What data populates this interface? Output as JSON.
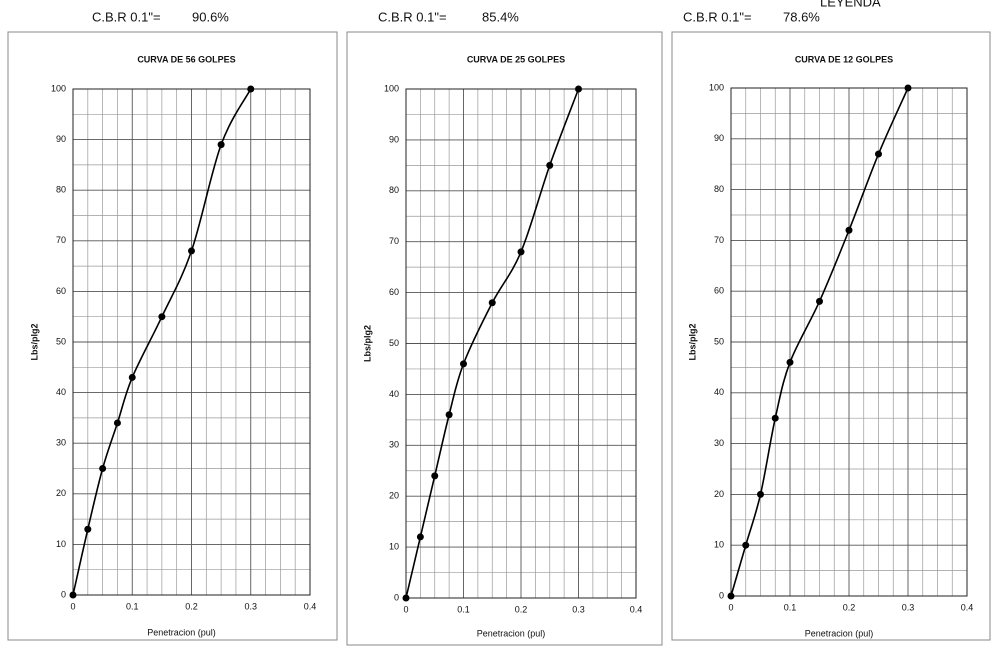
{
  "legend_text": "LEYENDA",
  "headers": [
    {
      "label": "C.B.R  0.1\"=",
      "value": "90.6%"
    },
    {
      "label": "C.B.R  0.1\"=",
      "value": "85.4%"
    },
    {
      "label": "C.B.R  0.1\"=",
      "value": "78.6%"
    }
  ],
  "chart_data": [
    {
      "type": "line",
      "title": "CURVA DE 56 GOLPES",
      "xlabel": "Penetracion (pul)",
      "ylabel": "Lbs/plg2",
      "x": [
        0,
        0.025,
        0.05,
        0.075,
        0.1,
        0.15,
        0.2,
        0.25,
        0.3
      ],
      "values": [
        0,
        13,
        25,
        34,
        43,
        55,
        68,
        89,
        100
      ],
      "color": "#000000",
      "markers": true,
      "smooth": true,
      "xlim": [
        0,
        0.4
      ],
      "xticks": [
        0,
        0.1,
        0.2,
        0.3,
        0.4
      ],
      "ylim": [
        0,
        100
      ],
      "yticks": [
        0,
        10,
        20,
        30,
        40,
        50,
        60,
        70,
        80,
        90,
        100
      ],
      "grid": true
    },
    {
      "type": "line",
      "title": "CURVA DE 25 GOLPES",
      "xlabel": "Penetracion (pul)",
      "ylabel": "Lbs/plg2",
      "x": [
        0,
        0.025,
        0.05,
        0.075,
        0.1,
        0.15,
        0.2,
        0.25,
        0.3
      ],
      "values": [
        0,
        12,
        24,
        36,
        46,
        58,
        68,
        85,
        100
      ],
      "color": "#000000",
      "markers": true,
      "smooth": true,
      "xlim": [
        0,
        0.4
      ],
      "xticks": [
        0,
        0.1,
        0.2,
        0.3,
        0.4
      ],
      "ylim": [
        0,
        100
      ],
      "yticks": [
        0,
        10,
        20,
        30,
        40,
        50,
        60,
        70,
        80,
        90,
        100
      ],
      "grid": true
    },
    {
      "type": "line",
      "title": "CURVA DE 12 GOLPES",
      "xlabel": "Penetracion (pul)",
      "ylabel": "Lbs/plg2",
      "x": [
        0,
        0.025,
        0.05,
        0.075,
        0.1,
        0.15,
        0.2,
        0.25,
        0.3
      ],
      "values": [
        0,
        10,
        20,
        35,
        46,
        58,
        72,
        87,
        100
      ],
      "color": "#000000",
      "markers": true,
      "smooth": true,
      "xlim": [
        0,
        0.4
      ],
      "xticks": [
        0,
        0.1,
        0.2,
        0.3,
        0.4
      ],
      "ylim": [
        0,
        100
      ],
      "yticks": [
        0,
        10,
        20,
        30,
        40,
        50,
        60,
        70,
        80,
        90,
        100
      ],
      "grid": true
    }
  ]
}
